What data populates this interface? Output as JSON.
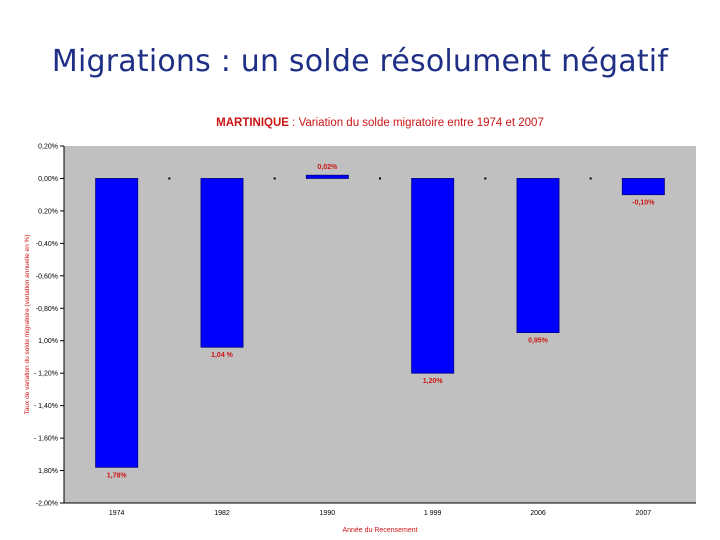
{
  "slide": {
    "title": "Migrations : un solde résolument négatif"
  },
  "chart_data": {
    "type": "bar",
    "title_part1": "MARTINIQUE",
    "title_part2": " : Variation du solde migratoire entre 1974 et 2007",
    "xlabel": "Année du Recensement",
    "ylabel": "Taux de variation du solde migratoire (variation annuelle en %)",
    "categories": [
      "1974",
      "1982",
      "1990",
      "1 999",
      "2006",
      "2007"
    ],
    "values": [
      -1.78,
      -1.04,
      0.02,
      -1.2,
      -0.95,
      -0.1
    ],
    "value_labels": [
      "1,78%",
      "1,04 %",
      "0,02%",
      "1,20%",
      "0,95%",
      "-0,10%"
    ],
    "ylim": [
      -2.0,
      0.2
    ],
    "y_ticks": [
      0.2,
      0.0,
      -0.2,
      -0.4,
      -0.6,
      -0.8,
      -1.0,
      -1.2,
      -1.4,
      -1.6,
      -1.8,
      -2.0
    ],
    "y_tick_labels": [
      "0,20%",
      "0,00%",
      "0,20%",
      "-0,40%",
      "-0,60%",
      "-0,80%",
      "1,00%",
      "- 1,20%",
      "- 1,40%",
      "- 1,60%",
      "1,80%",
      "-2,00%"
    ],
    "grid": false,
    "colors": {
      "bar": "#0000ff",
      "bar_edge": "#000080",
      "plot_bg": "#c0c0c0",
      "labels": "#cc1414",
      "axis": "#000000"
    }
  }
}
